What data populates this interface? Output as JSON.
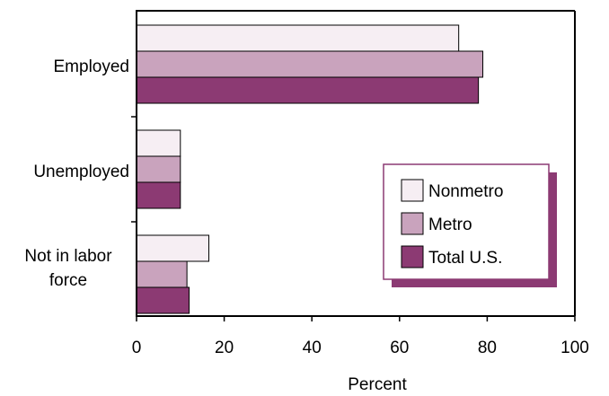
{
  "chart_data": {
    "type": "bar",
    "orientation": "horizontal",
    "title": "",
    "xlabel": "Percent",
    "ylabel": "",
    "xlim": [
      0,
      100
    ],
    "xticks": [
      0,
      20,
      40,
      60,
      80,
      100
    ],
    "categories": [
      {
        "lines": [
          "Employed"
        ]
      },
      {
        "lines": [
          "Unemployed"
        ]
      },
      {
        "lines": [
          "Not in labor",
          "force"
        ]
      }
    ],
    "series": [
      {
        "name": "Nonmetro",
        "color": "#f6eef3",
        "values": [
          73.5,
          10,
          16.5
        ]
      },
      {
        "name": "Metro",
        "color": "#c9a3bd",
        "values": [
          79,
          10,
          11.5
        ]
      },
      {
        "name": "Total U.S.",
        "color": "#8c3a73",
        "values": [
          78,
          10,
          12
        ]
      }
    ],
    "grid": false,
    "legend_position": "right-center"
  }
}
